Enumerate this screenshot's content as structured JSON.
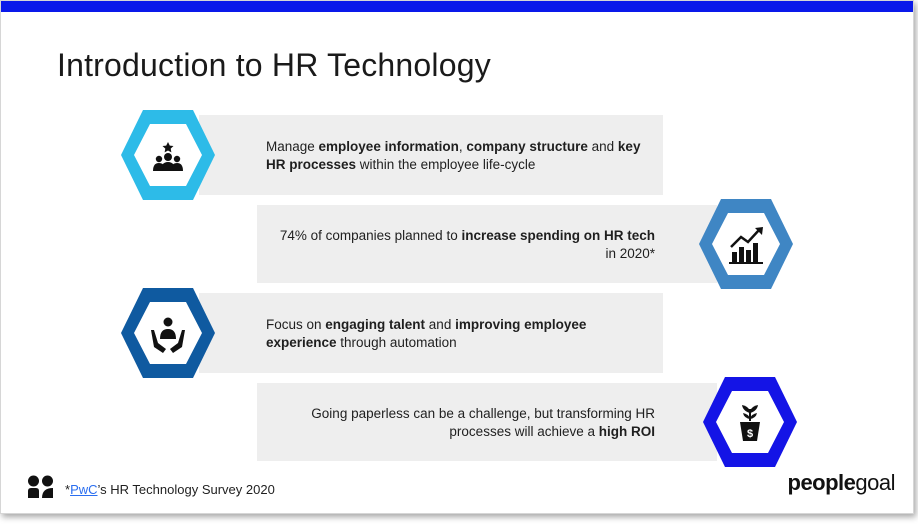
{
  "slide": {
    "title": "Introduction to HR Technology",
    "accent_color": "#0a19ea"
  },
  "items": [
    {
      "icon": "team-star-icon",
      "hex_color": "#2dbbe8",
      "parts": [
        {
          "t": "Manage ",
          "b": false
        },
        {
          "t": "employee information",
          "b": true
        },
        {
          "t": ", ",
          "b": false
        },
        {
          "t": "company structure",
          "b": true
        },
        {
          "t": " and ",
          "b": false
        },
        {
          "t": "key HR processes",
          "b": true
        },
        {
          "t": " within the employee life-cycle",
          "b": false
        }
      ]
    },
    {
      "icon": "growth-chart-icon",
      "hex_color": "#3f86c4",
      "parts": [
        {
          "t": "74% of companies planned to ",
          "b": false
        },
        {
          "t": "increase spending on HR tech",
          "b": true
        },
        {
          "t": " in 2020*",
          "b": false
        }
      ]
    },
    {
      "icon": "hands-person-icon",
      "hex_color": "#0f5aa0",
      "parts": [
        {
          "t": "Focus on ",
          "b": false
        },
        {
          "t": "engaging talent",
          "b": true
        },
        {
          "t": " and ",
          "b": false
        },
        {
          "t": "improving employee experience",
          "b": true
        },
        {
          "t": " through automation",
          "b": false
        }
      ]
    },
    {
      "icon": "money-plant-icon",
      "hex_color": "#1414e6",
      "parts": [
        {
          "t": "Going paperless can be a challenge, but transforming HR processes will achieve a ",
          "b": false
        },
        {
          "t": "high ROI",
          "b": true
        }
      ]
    }
  ],
  "footer": {
    "prefix": "*",
    "source_link": "PwC",
    "source_rest": "’s HR Technology Survey 2020",
    "brand_bold": "people",
    "brand_regular": "goal"
  }
}
